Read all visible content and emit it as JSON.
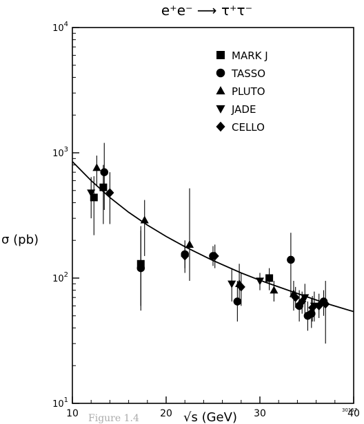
{
  "chart_data": {
    "type": "scatter",
    "title": "e⁺e⁻ ⟶ τ⁺τ⁻",
    "xlabel": "√s (GeV)",
    "ylabel": "σ (pb)",
    "xlim": [
      10,
      40
    ],
    "ylim": [
      10,
      10000
    ],
    "yscale": "log",
    "grid": false,
    "legend_position": "top-right",
    "xticks": [
      {
        "value": 10,
        "label": "10"
      },
      {
        "value": 20,
        "label": "20"
      },
      {
        "value": 30,
        "label": "30"
      },
      {
        "value": 40,
        "label": "40"
      }
    ],
    "yticks": [
      {
        "value": 10,
        "base": "10",
        "exp": "1"
      },
      {
        "value": 100,
        "base": "10",
        "exp": "2"
      },
      {
        "value": 1000,
        "base": "10",
        "exp": "3"
      },
      {
        "value": 10000,
        "base": "10",
        "exp": "4"
      }
    ],
    "series": [
      {
        "name": "MARK J",
        "marker": "square",
        "points": [
          {
            "x": 12.3,
            "y": 440,
            "lo": 220,
            "hi": 650
          },
          {
            "x": 13.3,
            "y": 530,
            "lo": 270,
            "hi": 800
          },
          {
            "x": 17.3,
            "y": 130,
            "lo": 55,
            "hi": 260
          },
          {
            "x": 31.0,
            "y": 100,
            "lo": 80,
            "hi": 120
          }
        ]
      },
      {
        "name": "TASSO",
        "marker": "circle",
        "points": [
          {
            "x": 13.4,
            "y": 700,
            "lo": 350,
            "hi": 1200
          },
          {
            "x": 17.3,
            "y": 120,
            "lo": 60,
            "hi": 240
          },
          {
            "x": 22.0,
            "y": 155,
            "lo": 110,
            "hi": 200
          },
          {
            "x": 25.0,
            "y": 150,
            "lo": 125,
            "hi": 180
          },
          {
            "x": 27.6,
            "y": 65,
            "lo": 45,
            "hi": 95
          },
          {
            "x": 33.3,
            "y": 140,
            "lo": 70,
            "hi": 230
          },
          {
            "x": 34.2,
            "y": 60,
            "lo": 45,
            "hi": 80
          },
          {
            "x": 35.1,
            "y": 50,
            "lo": 38,
            "hi": 65
          },
          {
            "x": 35.5,
            "y": 52,
            "lo": 40,
            "hi": 68
          },
          {
            "x": 36.8,
            "y": 65,
            "lo": 50,
            "hi": 80
          }
        ]
      },
      {
        "name": "PLUTO",
        "marker": "triangle-up",
        "points": [
          {
            "x": 12.6,
            "y": 760,
            "lo": 550,
            "hi": 950
          },
          {
            "x": 17.7,
            "y": 290,
            "lo": 150,
            "hi": 420
          },
          {
            "x": 22.5,
            "y": 185,
            "lo": 95,
            "hi": 520
          },
          {
            "x": 27.8,
            "y": 90,
            "lo": 65,
            "hi": 130
          },
          {
            "x": 31.5,
            "y": 80,
            "lo": 65,
            "hi": 95
          },
          {
            "x": 33.6,
            "y": 75,
            "lo": 55,
            "hi": 95
          }
        ]
      },
      {
        "name": "JADE",
        "marker": "triangle-down",
        "points": [
          {
            "x": 12.0,
            "y": 480,
            "lo": 300,
            "hi": 640
          },
          {
            "x": 27.0,
            "y": 90,
            "lo": 65,
            "hi": 120
          },
          {
            "x": 30.0,
            "y": 95,
            "lo": 80,
            "hi": 110
          },
          {
            "x": 34.8,
            "y": 70,
            "lo": 50,
            "hi": 90
          },
          {
            "x": 35.8,
            "y": 60,
            "lo": 45,
            "hi": 78
          }
        ]
      },
      {
        "name": "CELLO",
        "marker": "diamond",
        "points": [
          {
            "x": 14.0,
            "y": 480,
            "lo": 270,
            "hi": 700
          },
          {
            "x": 22.0,
            "y": 150,
            "lo": 120,
            "hi": 185
          },
          {
            "x": 25.2,
            "y": 150,
            "lo": 120,
            "hi": 185
          },
          {
            "x": 28.0,
            "y": 85,
            "lo": 60,
            "hi": 110
          },
          {
            "x": 33.8,
            "y": 70,
            "lo": 58,
            "hi": 85
          },
          {
            "x": 34.5,
            "y": 65,
            "lo": 52,
            "hi": 78
          },
          {
            "x": 35.6,
            "y": 58,
            "lo": 45,
            "hi": 72
          },
          {
            "x": 36.3,
            "y": 60,
            "lo": 48,
            "hi": 75
          },
          {
            "x": 37.0,
            "y": 62,
            "lo": 30,
            "hi": 95
          }
        ]
      }
    ],
    "curve": {
      "x": [
        10,
        12,
        14,
        16,
        18,
        20,
        22,
        25,
        28,
        30,
        33,
        35,
        37,
        40
      ],
      "y": [
        850,
        600,
        440,
        335,
        265,
        215,
        178,
        138,
        110,
        96,
        80,
        71,
        63,
        54
      ]
    }
  },
  "page": {
    "figure_caption_fragment": "Figure 1.4",
    "stamp": "30157"
  }
}
